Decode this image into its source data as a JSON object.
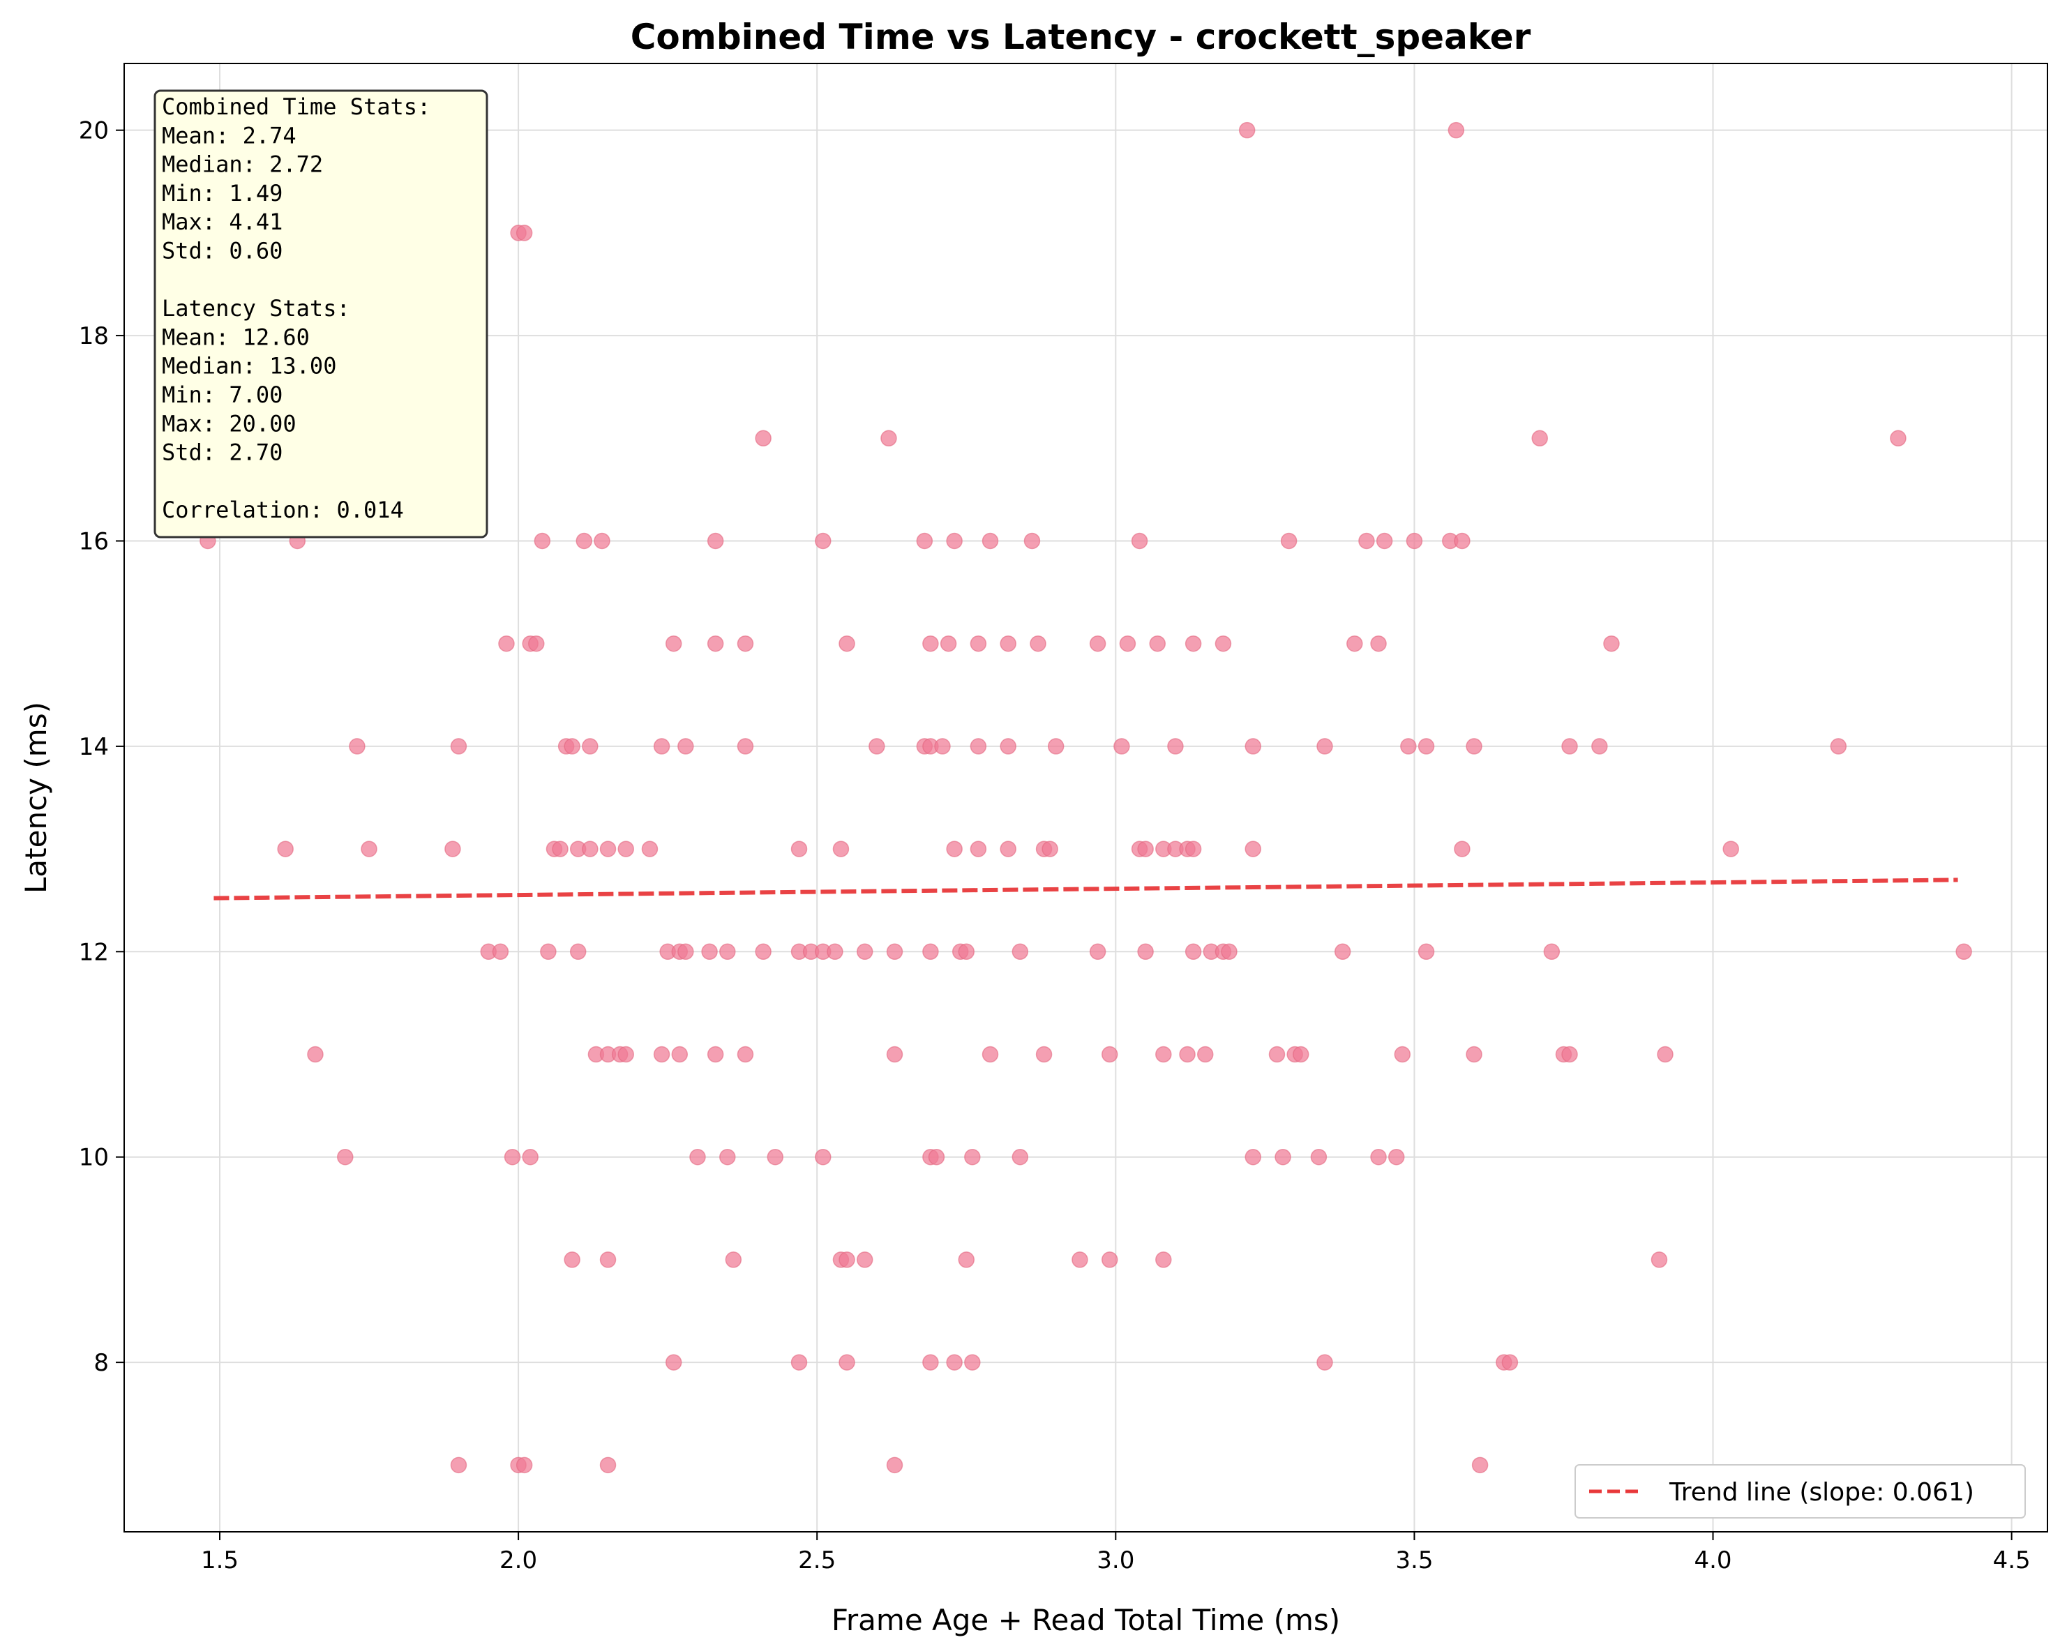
{
  "chart_data": {
    "type": "scatter",
    "title": "Combined Time vs Latency - crockett_speaker",
    "xlabel": "Frame Age + Read Total Time (ms)",
    "ylabel": "Latency (ms)",
    "xlim": [
      1.34,
      4.56
    ],
    "ylim": [
      6.35,
      20.65
    ],
    "xticks": [
      1.5,
      2.0,
      2.5,
      3.0,
      3.5,
      4.0,
      4.5
    ],
    "xtick_labels": [
      "1.5",
      "2.0",
      "2.5",
      "3.0",
      "3.5",
      "4.0",
      "4.5"
    ],
    "yticks": [
      8,
      10,
      12,
      14,
      16,
      18,
      20
    ],
    "ytick_labels": [
      "8",
      "10",
      "12",
      "14",
      "16",
      "18",
      "20"
    ],
    "grid": true,
    "point_color": "#f07a94",
    "trend_color": "#e8383a",
    "points": [
      [
        3.22,
        20
      ],
      [
        3.57,
        20
      ],
      [
        1.76,
        19
      ],
      [
        1.85,
        19
      ],
      [
        2.0,
        19
      ],
      [
        2.01,
        19
      ],
      [
        2.41,
        17
      ],
      [
        2.62,
        17
      ],
      [
        3.71,
        17
      ],
      [
        4.31,
        17
      ],
      [
        1.48,
        16
      ],
      [
        1.63,
        16
      ],
      [
        2.04,
        16
      ],
      [
        2.11,
        16
      ],
      [
        2.14,
        16
      ],
      [
        2.33,
        16
      ],
      [
        2.51,
        16
      ],
      [
        2.68,
        16
      ],
      [
        2.73,
        16
      ],
      [
        2.79,
        16
      ],
      [
        2.86,
        16
      ],
      [
        3.04,
        16
      ],
      [
        3.29,
        16
      ],
      [
        3.42,
        16
      ],
      [
        3.45,
        16
      ],
      [
        3.5,
        16
      ],
      [
        3.56,
        16
      ],
      [
        3.58,
        16
      ],
      [
        1.98,
        15
      ],
      [
        2.02,
        15
      ],
      [
        2.03,
        15
      ],
      [
        2.26,
        15
      ],
      [
        2.33,
        15
      ],
      [
        2.38,
        15
      ],
      [
        2.55,
        15
      ],
      [
        2.69,
        15
      ],
      [
        2.72,
        15
      ],
      [
        2.77,
        15
      ],
      [
        2.82,
        15
      ],
      [
        2.87,
        15
      ],
      [
        2.97,
        15
      ],
      [
        3.02,
        15
      ],
      [
        3.07,
        15
      ],
      [
        3.13,
        15
      ],
      [
        3.18,
        15
      ],
      [
        3.4,
        15
      ],
      [
        3.44,
        15
      ],
      [
        3.83,
        15
      ],
      [
        1.73,
        14
      ],
      [
        1.9,
        14
      ],
      [
        2.08,
        14
      ],
      [
        2.09,
        14
      ],
      [
        2.12,
        14
      ],
      [
        2.24,
        14
      ],
      [
        2.28,
        14
      ],
      [
        2.38,
        14
      ],
      [
        2.6,
        14
      ],
      [
        2.68,
        14
      ],
      [
        2.69,
        14
      ],
      [
        2.71,
        14
      ],
      [
        2.77,
        14
      ],
      [
        2.82,
        14
      ],
      [
        2.9,
        14
      ],
      [
        3.01,
        14
      ],
      [
        3.1,
        14
      ],
      [
        3.23,
        14
      ],
      [
        3.35,
        14
      ],
      [
        3.49,
        14
      ],
      [
        3.52,
        14
      ],
      [
        3.6,
        14
      ],
      [
        3.76,
        14
      ],
      [
        3.81,
        14
      ],
      [
        4.21,
        14
      ],
      [
        1.61,
        13
      ],
      [
        1.75,
        13
      ],
      [
        1.89,
        13
      ],
      [
        2.06,
        13
      ],
      [
        2.07,
        13
      ],
      [
        2.1,
        13
      ],
      [
        2.12,
        13
      ],
      [
        2.15,
        13
      ],
      [
        2.18,
        13
      ],
      [
        2.22,
        13
      ],
      [
        2.47,
        13
      ],
      [
        2.54,
        13
      ],
      [
        2.73,
        13
      ],
      [
        2.77,
        13
      ],
      [
        2.82,
        13
      ],
      [
        2.88,
        13
      ],
      [
        2.89,
        13
      ],
      [
        3.04,
        13
      ],
      [
        3.05,
        13
      ],
      [
        3.08,
        13
      ],
      [
        3.1,
        13
      ],
      [
        3.12,
        13
      ],
      [
        3.13,
        13
      ],
      [
        3.23,
        13
      ],
      [
        3.58,
        13
      ],
      [
        4.03,
        13
      ],
      [
        1.95,
        12
      ],
      [
        1.97,
        12
      ],
      [
        2.05,
        12
      ],
      [
        2.1,
        12
      ],
      [
        2.25,
        12
      ],
      [
        2.27,
        12
      ],
      [
        2.28,
        12
      ],
      [
        2.32,
        12
      ],
      [
        2.35,
        12
      ],
      [
        2.41,
        12
      ],
      [
        2.47,
        12
      ],
      [
        2.49,
        12
      ],
      [
        2.51,
        12
      ],
      [
        2.53,
        12
      ],
      [
        2.58,
        12
      ],
      [
        2.63,
        12
      ],
      [
        2.69,
        12
      ],
      [
        2.74,
        12
      ],
      [
        2.75,
        12
      ],
      [
        2.84,
        12
      ],
      [
        2.97,
        12
      ],
      [
        3.05,
        12
      ],
      [
        3.13,
        12
      ],
      [
        3.16,
        12
      ],
      [
        3.18,
        12
      ],
      [
        3.19,
        12
      ],
      [
        3.38,
        12
      ],
      [
        3.52,
        12
      ],
      [
        3.73,
        12
      ],
      [
        4.42,
        12
      ],
      [
        1.66,
        11
      ],
      [
        2.13,
        11
      ],
      [
        2.15,
        11
      ],
      [
        2.17,
        11
      ],
      [
        2.18,
        11
      ],
      [
        2.24,
        11
      ],
      [
        2.27,
        11
      ],
      [
        2.33,
        11
      ],
      [
        2.38,
        11
      ],
      [
        2.63,
        11
      ],
      [
        2.79,
        11
      ],
      [
        2.88,
        11
      ],
      [
        2.99,
        11
      ],
      [
        3.08,
        11
      ],
      [
        3.12,
        11
      ],
      [
        3.15,
        11
      ],
      [
        3.27,
        11
      ],
      [
        3.3,
        11
      ],
      [
        3.31,
        11
      ],
      [
        3.48,
        11
      ],
      [
        3.6,
        11
      ],
      [
        3.75,
        11
      ],
      [
        3.76,
        11
      ],
      [
        3.92,
        11
      ],
      [
        1.71,
        10
      ],
      [
        1.99,
        10
      ],
      [
        2.02,
        10
      ],
      [
        2.3,
        10
      ],
      [
        2.35,
        10
      ],
      [
        2.43,
        10
      ],
      [
        2.51,
        10
      ],
      [
        2.69,
        10
      ],
      [
        2.7,
        10
      ],
      [
        2.76,
        10
      ],
      [
        2.84,
        10
      ],
      [
        3.23,
        10
      ],
      [
        3.28,
        10
      ],
      [
        3.34,
        10
      ],
      [
        3.44,
        10
      ],
      [
        3.47,
        10
      ],
      [
        2.09,
        9
      ],
      [
        2.15,
        9
      ],
      [
        2.36,
        9
      ],
      [
        2.54,
        9
      ],
      [
        2.55,
        9
      ],
      [
        2.58,
        9
      ],
      [
        2.75,
        9
      ],
      [
        2.94,
        9
      ],
      [
        2.99,
        9
      ],
      [
        3.08,
        9
      ],
      [
        3.91,
        9
      ],
      [
        2.26,
        8
      ],
      [
        2.47,
        8
      ],
      [
        2.55,
        8
      ],
      [
        2.69,
        8
      ],
      [
        2.73,
        8
      ],
      [
        2.76,
        8
      ],
      [
        3.35,
        8
      ],
      [
        3.65,
        8
      ],
      [
        3.66,
        8
      ],
      [
        1.9,
        7
      ],
      [
        2.0,
        7
      ],
      [
        2.01,
        7
      ],
      [
        2.15,
        7
      ],
      [
        2.63,
        7
      ],
      [
        3.61,
        7
      ]
    ],
    "trend_line": {
      "x": [
        1.49,
        4.41
      ],
      "slope": 0.061,
      "intercept": 12.43
    },
    "legend": {
      "label": "Trend line (slope: 0.061)",
      "position": "lower right"
    },
    "stats_box": {
      "position": "upper left",
      "lines": [
        "Combined Time Stats:",
        "Mean: 2.74",
        "Median: 2.72",
        "Min: 1.49",
        "Max: 4.41",
        "Std: 0.60",
        "",
        "Latency Stats:",
        "Mean: 12.60",
        "Median: 13.00",
        "Min: 7.00",
        "Max: 20.00",
        "Std: 2.70",
        "",
        "Correlation: 0.014"
      ]
    }
  }
}
